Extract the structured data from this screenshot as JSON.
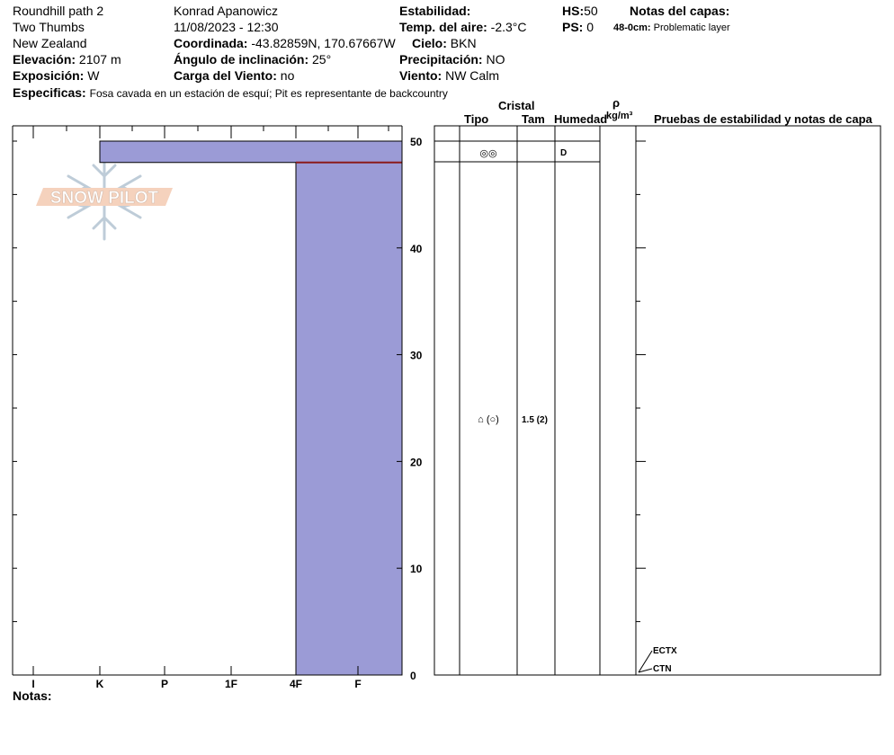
{
  "header": {
    "location": "Roundhill path 2",
    "area": "Two Thumbs",
    "country": "New Zealand",
    "elevation_label": "Elevación:",
    "elevation_value": "2107 m",
    "aspect_label": "Exposición:",
    "aspect_value": "W",
    "observer": "Konrad Apanowicz",
    "datetime": "11/08/2023 - 12:30",
    "coord_label": "Coordinada:",
    "coord_value": "-43.82859N, 170.67667W",
    "slope_label": "Ángulo de inclinación:",
    "slope_value": "25°",
    "wind_load_label": "Carga del Viento:",
    "wind_load_value": "no",
    "stability_label": "Estabilidad:",
    "air_temp_label": "Temp. del aire:",
    "air_temp_value": "-2.3°C",
    "sky_label": "Cielo:",
    "sky_value": "BKN",
    "precip_label": "Precipitación:",
    "precip_value": "NO",
    "wind_label": "Viento:",
    "wind_value": "NW Calm",
    "hs_label": "HS:",
    "hs_value": "50",
    "ps_label": "PS:",
    "ps_value": "0",
    "layer_notes_label": "Notas del capas:",
    "layer_note_depth": "48-0cm:",
    "layer_note_text": "Problematic layer",
    "specifics_label": "Especificas:",
    "specifics_text": "Fosa cavada en un estación de esquí; Pit es representante de backcountry",
    "notes_label": "Notas:"
  },
  "logo": {
    "text": "SNOW PILOT"
  },
  "table_headers": {
    "crystal": "Cristal",
    "type": "Tipo",
    "size": "Tam",
    "moisture": "Humedad",
    "density_symbol": "ρ",
    "density_unit": "kg/m³",
    "tests": "Pruebas de estabilidad y notas de capa"
  },
  "chart_data": {
    "type": "bar",
    "subtype": "snow-profile-hardness",
    "y_axis": {
      "range": [
        0,
        50
      ],
      "ticks": [
        0,
        10,
        20,
        30,
        40,
        50
      ],
      "unit": "cm"
    },
    "x_axis": {
      "categories": [
        "I",
        "K",
        "P",
        "1F",
        "4F",
        "F"
      ]
    },
    "fill_color": "#9b9bd6",
    "layers": [
      {
        "top": 50,
        "bottom": 48,
        "hardness": "K"
      },
      {
        "top": 48,
        "bottom": 0,
        "hardness": "4F"
      }
    ],
    "layer_details": [
      {
        "mid": 49,
        "grain": "◎◎",
        "size": "",
        "moisture": "D"
      },
      {
        "mid": 24,
        "grain": "⌂ (○)",
        "size": "1.5 (2)",
        "moisture": ""
      }
    ],
    "problem_layer_line": {
      "depth": 48,
      "color": "#8b1a1a"
    },
    "stability_tests": [
      {
        "label": "ECTX",
        "height": 0
      },
      {
        "label": "CTN",
        "height": 0
      }
    ]
  }
}
